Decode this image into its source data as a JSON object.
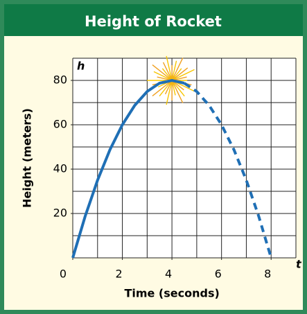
{
  "chart_data": {
    "type": "line",
    "title": "Height of Rocket",
    "x_label": "Time (seconds)",
    "y_label": "Height (meters)",
    "x_var": "t",
    "y_var": "h",
    "series": [
      {
        "color": "#1f6fb5",
        "style": "solid",
        "x": [
          0,
          0.5,
          1,
          1.5,
          2,
          2.5,
          3,
          3.5,
          4,
          4.5
        ],
        "values": [
          0,
          18.75,
          35,
          48.75,
          60,
          68.75,
          75,
          78.75,
          80,
          78.75
        ]
      },
      {
        "color": "#1f6fb5",
        "style": "dashed",
        "x": [
          4.5,
          5,
          5.5,
          6,
          6.5,
          7,
          7.5,
          8
        ],
        "values": [
          78.75,
          75,
          68.75,
          60,
          48.75,
          35,
          18.75,
          0
        ]
      }
    ],
    "xlim": [
      0,
      9
    ],
    "ylim": [
      0,
      90
    ],
    "xticks": [
      0,
      2,
      4,
      6,
      8
    ],
    "yticks": [
      20,
      40,
      60,
      80
    ],
    "grid_step_x": 1,
    "grid_step_y": 10,
    "grid": true
  }
}
